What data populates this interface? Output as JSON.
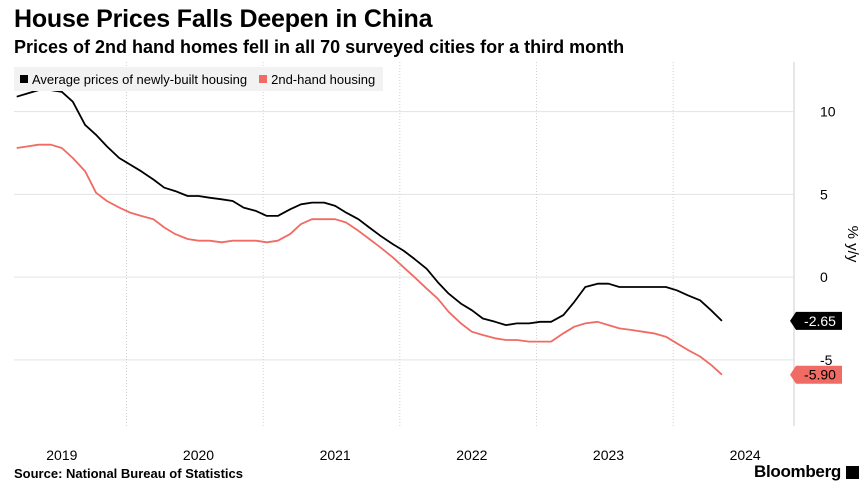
{
  "header": {
    "title": "House Prices Falls Deepen in China",
    "subtitle": "Prices of 2nd hand homes fell in all 70 surveyed cities for a third month"
  },
  "legend": {
    "items": [
      {
        "label": "Average prices of newly-built housing",
        "color": "#000000"
      },
      {
        "label": "2nd-hand housing",
        "color": "#f06b63"
      }
    ]
  },
  "footer": {
    "source": "Source: National Bureau of Statistics",
    "brand": "Bloomberg"
  },
  "chart_data": {
    "type": "line",
    "title": "House Prices Falls Deepen in China",
    "subtitle": "Prices of 2nd hand homes fell in all 70 surveyed cities for a third month",
    "xlabel": "",
    "ylabel": "% y/y",
    "ylim": [
      -9,
      13
    ],
    "yticks": [
      10,
      5,
      0,
      -5
    ],
    "ytick_labels": [
      "10",
      "5",
      "0",
      "-5"
    ],
    "xlim": [
      2018.65,
      2024.35
    ],
    "xticks": [
      2019,
      2020,
      2021,
      2022,
      2023,
      2024
    ],
    "xtick_labels": [
      "2019",
      "2020",
      "2021",
      "2022",
      "2023",
      "2024"
    ],
    "legend_position": "top-left",
    "series": [
      {
        "name": "Average prices of newly-built housing",
        "color": "#000000",
        "last_label": "-2.65",
        "points": [
          [
            2018.67,
            10.9
          ],
          [
            2018.75,
            11.1
          ],
          [
            2018.83,
            11.3
          ],
          [
            2018.92,
            11.3
          ],
          [
            2019.0,
            11.2
          ],
          [
            2019.08,
            10.6
          ],
          [
            2019.17,
            9.2
          ],
          [
            2019.25,
            8.6
          ],
          [
            2019.33,
            7.9
          ],
          [
            2019.42,
            7.2
          ],
          [
            2019.5,
            6.8
          ],
          [
            2019.58,
            6.4
          ],
          [
            2019.67,
            5.9
          ],
          [
            2019.75,
            5.4
          ],
          [
            2019.83,
            5.2
          ],
          [
            2019.92,
            4.9
          ],
          [
            2020.0,
            4.9
          ],
          [
            2020.08,
            4.8
          ],
          [
            2020.17,
            4.7
          ],
          [
            2020.25,
            4.6
          ],
          [
            2020.33,
            4.2
          ],
          [
            2020.42,
            4.0
          ],
          [
            2020.5,
            3.7
          ],
          [
            2020.58,
            3.7
          ],
          [
            2020.67,
            4.1
          ],
          [
            2020.75,
            4.4
          ],
          [
            2020.83,
            4.5
          ],
          [
            2020.92,
            4.5
          ],
          [
            2021.0,
            4.3
          ],
          [
            2021.08,
            3.9
          ],
          [
            2021.17,
            3.5
          ],
          [
            2021.25,
            3.0
          ],
          [
            2021.33,
            2.5
          ],
          [
            2021.42,
            2.0
          ],
          [
            2021.5,
            1.6
          ],
          [
            2021.58,
            1.1
          ],
          [
            2021.67,
            0.5
          ],
          [
            2021.75,
            -0.3
          ],
          [
            2021.83,
            -1.0
          ],
          [
            2021.92,
            -1.6
          ],
          [
            2022.0,
            -2.0
          ],
          [
            2022.08,
            -2.5
          ],
          [
            2022.17,
            -2.7
          ],
          [
            2022.25,
            -2.9
          ],
          [
            2022.33,
            -2.8
          ],
          [
            2022.42,
            -2.8
          ],
          [
            2022.5,
            -2.7
          ],
          [
            2022.58,
            -2.7
          ],
          [
            2022.67,
            -2.3
          ],
          [
            2022.75,
            -1.5
          ],
          [
            2022.83,
            -0.6
          ],
          [
            2022.92,
            -0.4
          ],
          [
            2023.0,
            -0.4
          ],
          [
            2023.08,
            -0.6
          ],
          [
            2023.17,
            -0.6
          ],
          [
            2023.25,
            -0.6
          ],
          [
            2023.33,
            -0.6
          ],
          [
            2023.42,
            -0.6
          ],
          [
            2023.5,
            -0.8
          ],
          [
            2023.58,
            -1.1
          ],
          [
            2023.67,
            -1.4
          ],
          [
            2023.75,
            -2.0
          ],
          [
            2023.83,
            -2.65
          ]
        ]
      },
      {
        "name": "2nd-hand housing",
        "color": "#f06b63",
        "last_label": "-5.90",
        "points": [
          [
            2018.67,
            7.8
          ],
          [
            2018.75,
            7.9
          ],
          [
            2018.83,
            8.0
          ],
          [
            2018.92,
            8.0
          ],
          [
            2019.0,
            7.8
          ],
          [
            2019.08,
            7.2
          ],
          [
            2019.17,
            6.4
          ],
          [
            2019.25,
            5.1
          ],
          [
            2019.33,
            4.6
          ],
          [
            2019.42,
            4.2
          ],
          [
            2019.5,
            3.9
          ],
          [
            2019.58,
            3.7
          ],
          [
            2019.67,
            3.5
          ],
          [
            2019.75,
            3.0
          ],
          [
            2019.83,
            2.6
          ],
          [
            2019.92,
            2.3
          ],
          [
            2020.0,
            2.2
          ],
          [
            2020.08,
            2.2
          ],
          [
            2020.17,
            2.1
          ],
          [
            2020.25,
            2.2
          ],
          [
            2020.33,
            2.2
          ],
          [
            2020.42,
            2.2
          ],
          [
            2020.5,
            2.1
          ],
          [
            2020.58,
            2.2
          ],
          [
            2020.67,
            2.6
          ],
          [
            2020.75,
            3.2
          ],
          [
            2020.83,
            3.5
          ],
          [
            2020.92,
            3.5
          ],
          [
            2021.0,
            3.5
          ],
          [
            2021.08,
            3.3
          ],
          [
            2021.17,
            2.8
          ],
          [
            2021.25,
            2.3
          ],
          [
            2021.33,
            1.8
          ],
          [
            2021.42,
            1.2
          ],
          [
            2021.5,
            0.6
          ],
          [
            2021.58,
            0.0
          ],
          [
            2021.67,
            -0.7
          ],
          [
            2021.75,
            -1.3
          ],
          [
            2021.83,
            -2.1
          ],
          [
            2021.92,
            -2.8
          ],
          [
            2022.0,
            -3.3
          ],
          [
            2022.08,
            -3.5
          ],
          [
            2022.17,
            -3.7
          ],
          [
            2022.25,
            -3.8
          ],
          [
            2022.33,
            -3.8
          ],
          [
            2022.42,
            -3.9
          ],
          [
            2022.5,
            -3.9
          ],
          [
            2022.58,
            -3.9
          ],
          [
            2022.67,
            -3.4
          ],
          [
            2022.75,
            -3.0
          ],
          [
            2022.83,
            -2.8
          ],
          [
            2022.92,
            -2.7
          ],
          [
            2023.0,
            -2.9
          ],
          [
            2023.08,
            -3.1
          ],
          [
            2023.17,
            -3.2
          ],
          [
            2023.25,
            -3.3
          ],
          [
            2023.33,
            -3.4
          ],
          [
            2023.42,
            -3.6
          ],
          [
            2023.5,
            -4.0
          ],
          [
            2023.58,
            -4.4
          ],
          [
            2023.67,
            -4.8
          ],
          [
            2023.75,
            -5.3
          ],
          [
            2023.83,
            -5.9
          ]
        ]
      }
    ]
  }
}
